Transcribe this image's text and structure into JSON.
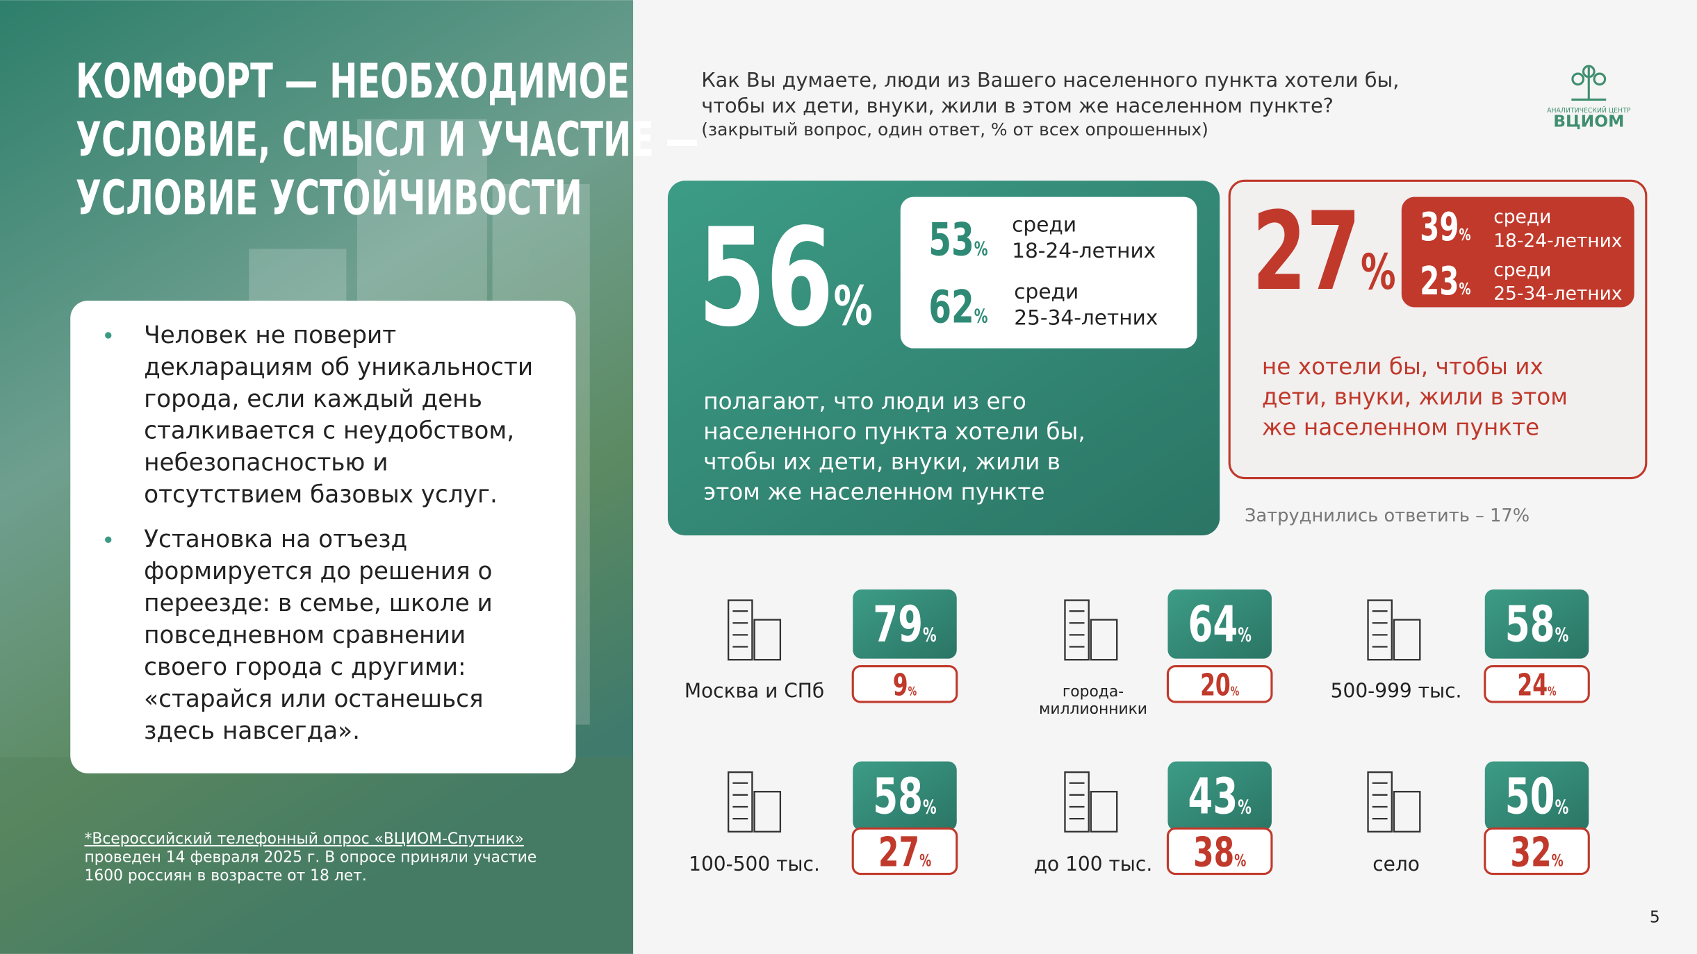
{
  "title_lines": [
    "КОМФОРТ — НЕОБХОДИМОЕ",
    "УСЛОВИЕ, СМЫСЛ И УЧАСТИЕ —",
    "УСЛОВИЕ УСТОЙЧИВОСТИ"
  ],
  "bullets": [
    [
      "Человек не поверит",
      "декларациям об уникальности",
      "города, если каждый день",
      "сталкивается с неудобством,",
      "небезопасностью и",
      "отсутствием базовых услуг."
    ],
    [
      "Установка на отъезд",
      "формируется до решения о",
      "переезде: в семье, школе и",
      "повседневном сравнении",
      "своего города с другими:",
      "«старайся или останешься",
      "здесь навсегда»."
    ]
  ],
  "footnote": {
    "source": "*Всероссийский телефонный опрос «ВЦИОМ-Спутник»",
    "lines": [
      "проведен 14 февраля 2025 г. В опросе приняли участие",
      "1600 россиян в возрасте от 18 лет."
    ]
  },
  "question": {
    "lines": [
      "Как Вы думаете, люди из Вашего населенного пункта хотели бы,",
      "чтобы их дети, внуки, жили в этом же населенном пункте?"
    ],
    "note": "(закрытый вопрос, один ответ, % от всех опрошенных)"
  },
  "logo": {
    "caption": "АНАЛИТИЧЕСКИЙ ЦЕНТР",
    "name": "ВЦИОМ"
  },
  "unit": "%",
  "yes": {
    "value": 56,
    "breakdown": [
      {
        "value": 53,
        "label": [
          "среди",
          "18-24-летних"
        ]
      },
      {
        "value": 62,
        "label": [
          "среди",
          "25-34-летних"
        ]
      }
    ],
    "text": [
      "полагают, что люди из его",
      "населенного пункта хотели бы,",
      "чтобы их дети, внуки, жили в",
      "этом же населенном пункте"
    ]
  },
  "no": {
    "value": 27,
    "breakdown": [
      {
        "value": 39,
        "label": [
          "среди",
          "18-24-летних"
        ]
      },
      {
        "value": 23,
        "label": [
          "среди",
          "25-34-летних"
        ]
      }
    ],
    "text": [
      "не хотели бы, чтобы их",
      "дети, внуки, жили в этом",
      "же населенном пункте"
    ]
  },
  "hard_to_say": "Затруднились ответить – 17%",
  "groups": [
    {
      "label": [
        "Москва и СПб"
      ],
      "yes": 79,
      "no": 9
    },
    {
      "label": [
        "города-",
        "миллионники"
      ],
      "yes": 64,
      "no": 20
    },
    {
      "label": [
        "500-999 тыс."
      ],
      "yes": 58,
      "no": 24
    },
    {
      "label": [
        "100-500 тыс."
      ],
      "yes": 58,
      "no": 27
    },
    {
      "label": [
        "до 100 тыс."
      ],
      "yes": 43,
      "no": 38
    },
    {
      "label": [
        "село"
      ],
      "yes": 50,
      "no": 32
    }
  ],
  "page_number": 5
}
